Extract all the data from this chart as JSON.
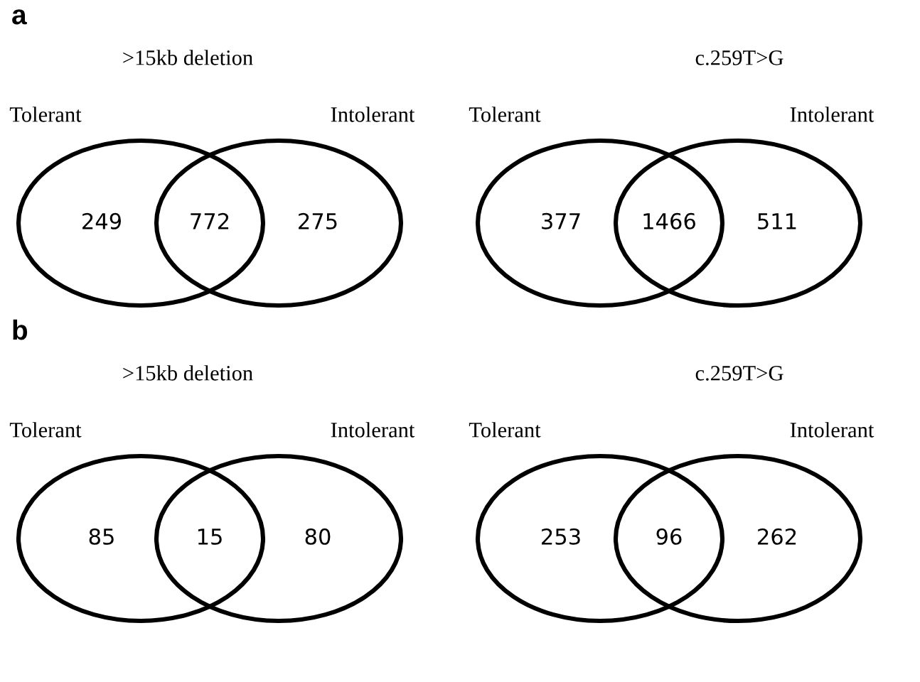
{
  "chart_data": [
    {
      "type": "other",
      "title": ">15kb deletion",
      "categories": [
        "Tolerant",
        null,
        "Intolerant"
      ],
      "values": [
        249,
        772,
        275
      ],
      "data_labels": true,
      "annotations": [
        "a"
      ]
    },
    {
      "type": "other",
      "title": "c.259T>G",
      "categories": [
        "Tolerant",
        null,
        "Intolerant"
      ],
      "values": [
        377,
        1466,
        511
      ],
      "data_labels": true
    },
    {
      "type": "other",
      "title": ">15kb deletion",
      "categories": [
        "Tolerant",
        null,
        "Intolerant"
      ],
      "values": [
        85,
        15,
        80
      ],
      "data_labels": true,
      "annotations": [
        "b"
      ]
    },
    {
      "type": "other",
      "title": "c.259T>G",
      "categories": [
        "Tolerant",
        null,
        "Intolerant"
      ],
      "values": [
        253,
        96,
        262
      ],
      "data_labels": true
    }
  ]
}
